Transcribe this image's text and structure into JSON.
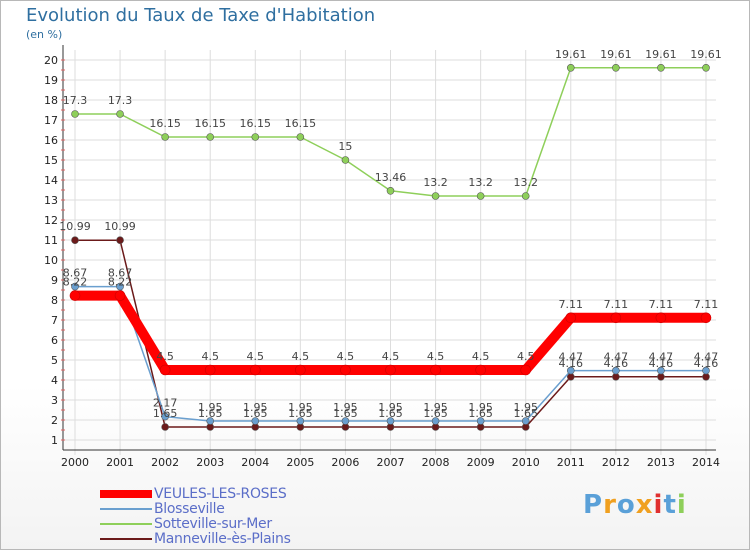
{
  "header": {
    "title": "Evolution du Taux de Taxe d'Habitation",
    "subtitle": "(en %)"
  },
  "logo": {
    "text": "Proxiti"
  },
  "chart_data": {
    "type": "line",
    "title": "Evolution du Taux de Taxe d'Habitation",
    "subtitle": "(en %)",
    "xlabel": "",
    "ylabel": "",
    "x": [
      "2000",
      "2001",
      "2002",
      "2003",
      "2004",
      "2005",
      "2006",
      "2007",
      "2008",
      "2009",
      "2010",
      "2011",
      "2012",
      "2013",
      "2014"
    ],
    "yticks": [
      1,
      2,
      3,
      4,
      5,
      6,
      7,
      8,
      9,
      10,
      11,
      12,
      13,
      14,
      15,
      16,
      17,
      18,
      19,
      20
    ],
    "ylim": [
      0.5,
      20.5
    ],
    "grid": true,
    "legend_position": "bottom-left",
    "series": [
      {
        "name": "VEULES-LES-ROSES",
        "color": "#ff0000",
        "values": [
          8.22,
          8.22,
          4.5,
          4.5,
          4.5,
          4.5,
          4.5,
          4.5,
          4.5,
          4.5,
          4.5,
          7.11,
          7.11,
          7.11,
          7.11
        ],
        "labels": [
          "8.22",
          "8.22",
          "4.5",
          "4.5",
          "4.5",
          "4.5",
          "4.5",
          "4.5",
          "4.5",
          "4.5",
          "4.5",
          "7.11",
          "7.11",
          "7.11",
          "7.11"
        ]
      },
      {
        "name": "Blosseville",
        "color": "#6a9fcf",
        "values": [
          8.67,
          8.67,
          2.17,
          1.95,
          1.95,
          1.95,
          1.95,
          1.95,
          1.95,
          1.95,
          1.95,
          4.47,
          4.47,
          4.47,
          4.47
        ],
        "labels": [
          "8.67",
          "8.67",
          "2.17",
          "1.95",
          "1.95",
          "1.95",
          "1.95",
          "1.95",
          "1.95",
          "1.95",
          "1.95",
          "4.47",
          "4.47",
          "4.47",
          "4.47"
        ]
      },
      {
        "name": "Sotteville-sur-Mer",
        "color": "#8ecf5a",
        "values": [
          17.3,
          17.3,
          16.15,
          16.15,
          16.15,
          16.15,
          15,
          13.46,
          13.2,
          13.2,
          13.2,
          19.61,
          19.61,
          19.61,
          19.61
        ],
        "labels": [
          "17.3",
          "17.3",
          "16.15",
          "16.15",
          "16.15",
          "16.15",
          "15",
          "13.46",
          "13.2",
          "13.2",
          "13.2",
          "19.61",
          "19.61",
          "19.61",
          "19.61"
        ]
      },
      {
        "name": "Manneville-ès-Plains",
        "color": "#6b1a1a",
        "values": [
          10.99,
          10.99,
          1.65,
          1.65,
          1.65,
          1.65,
          1.65,
          1.65,
          1.65,
          1.65,
          1.65,
          4.16,
          4.16,
          4.16,
          4.16
        ],
        "labels": [
          "10.99",
          "10.99",
          "1.65",
          "1.65",
          "1.65",
          "1.65",
          "1.65",
          "1.65",
          "1.65",
          "1.65",
          "1.65",
          "4.16",
          "4.16",
          "4.16",
          "4.16"
        ]
      }
    ]
  },
  "colors": {
    "title": "#2f6fa0",
    "legend_text": "#5b6ec8",
    "grid": "#dddddd"
  }
}
